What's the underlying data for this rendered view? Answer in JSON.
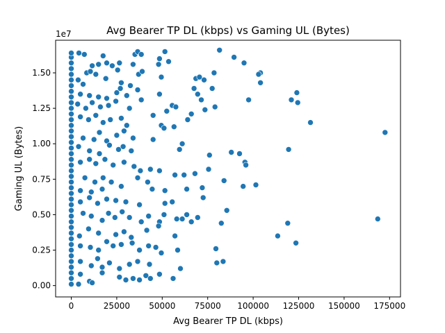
{
  "chart_data": {
    "type": "scatter",
    "title": "Avg Bearer TP DL (kbps) vs Gaming UL (Bytes)",
    "xlabel": "Avg Bearer TP DL (kbps)",
    "ylabel": "Gaming UL (Bytes)",
    "y_offset_label": "1e7",
    "xlim": [
      -8600,
      181000
    ],
    "ylim": [
      -800000,
      17300000
    ],
    "x_ticks": [
      0,
      25000,
      50000,
      75000,
      100000,
      125000,
      150000,
      175000
    ],
    "x_tick_labels": [
      "0",
      "25000",
      "50000",
      "75000",
      "100000",
      "125000",
      "150000",
      "175000"
    ],
    "y_ticks": [
      0,
      2500000,
      5000000,
      7500000,
      10000000,
      12500000,
      15000000
    ],
    "y_tick_labels": [
      "0.00",
      "0.25",
      "0.50",
      "0.75",
      "1.00",
      "1.25",
      "1.50"
    ],
    "grid": false,
    "point_color": "#1f77b4",
    "points": [
      {
        "x": 0,
        "y": 100000
      },
      {
        "x": 0,
        "y": 500000
      },
      {
        "x": 0,
        "y": 900000
      },
      {
        "x": 0,
        "y": 1300000
      },
      {
        "x": 0,
        "y": 1700000
      },
      {
        "x": 0,
        "y": 2100000
      },
      {
        "x": 0,
        "y": 2500000
      },
      {
        "x": 0,
        "y": 2900000
      },
      {
        "x": 0,
        "y": 3300000
      },
      {
        "x": 0,
        "y": 3700000
      },
      {
        "x": 0,
        "y": 4100000
      },
      {
        "x": 0,
        "y": 4500000
      },
      {
        "x": 0,
        "y": 4900000
      },
      {
        "x": 0,
        "y": 5300000
      },
      {
        "x": 0,
        "y": 5700000
      },
      {
        "x": 0,
        "y": 6100000
      },
      {
        "x": 0,
        "y": 6500000
      },
      {
        "x": 0,
        "y": 6900000
      },
      {
        "x": 0,
        "y": 7300000
      },
      {
        "x": 0,
        "y": 7700000
      },
      {
        "x": 0,
        "y": 8100000
      },
      {
        "x": 0,
        "y": 8500000
      },
      {
        "x": 0,
        "y": 8900000
      },
      {
        "x": 0,
        "y": 9300000
      },
      {
        "x": 0,
        "y": 9700000
      },
      {
        "x": 0,
        "y": 10100000
      },
      {
        "x": 0,
        "y": 10500000
      },
      {
        "x": 0,
        "y": 10900000
      },
      {
        "x": 0,
        "y": 11300000
      },
      {
        "x": 0,
        "y": 11700000
      },
      {
        "x": 0,
        "y": 12100000
      },
      {
        "x": 0,
        "y": 12500000
      },
      {
        "x": 0,
        "y": 12900000
      },
      {
        "x": 0,
        "y": 13300000
      },
      {
        "x": 0,
        "y": 13700000
      },
      {
        "x": 0,
        "y": 14100000
      },
      {
        "x": 0,
        "y": 14500000
      },
      {
        "x": 0,
        "y": 14900000
      },
      {
        "x": 0,
        "y": 15300000
      },
      {
        "x": 0,
        "y": 15700000
      },
      {
        "x": 0,
        "y": 16100000
      },
      {
        "x": 0,
        "y": 16400000
      },
      {
        "x": 4200,
        "y": 16400000
      },
      {
        "x": 7200,
        "y": 16300000
      },
      {
        "x": 17500,
        "y": 16200000
      },
      {
        "x": 35000,
        "y": 16300000
      },
      {
        "x": 36500,
        "y": 16500000
      },
      {
        "x": 38500,
        "y": 16300000
      },
      {
        "x": 51500,
        "y": 16500000
      },
      {
        "x": 81500,
        "y": 16600000
      },
      {
        "x": 11500,
        "y": 15500000
      },
      {
        "x": 15000,
        "y": 15600000
      },
      {
        "x": 19500,
        "y": 15700000
      },
      {
        "x": 22500,
        "y": 15500000
      },
      {
        "x": 26500,
        "y": 15700000
      },
      {
        "x": 34000,
        "y": 15600000
      },
      {
        "x": 48500,
        "y": 16000000
      },
      {
        "x": 48000,
        "y": 15600000
      },
      {
        "x": 53500,
        "y": 15800000
      },
      {
        "x": 89500,
        "y": 16100000
      },
      {
        "x": 95000,
        "y": 15700000
      },
      {
        "x": 8500,
        "y": 15000000
      },
      {
        "x": 10500,
        "y": 15100000
      },
      {
        "x": 13500,
        "y": 14900000
      },
      {
        "x": 25500,
        "y": 15200000
      },
      {
        "x": 37000,
        "y": 14900000
      },
      {
        "x": 39000,
        "y": 15100000
      },
      {
        "x": 78500,
        "y": 15000000
      },
      {
        "x": 104000,
        "y": 15000000
      },
      {
        "x": 103000,
        "y": 14900000
      },
      {
        "x": 3800,
        "y": 14500000
      },
      {
        "x": 6500,
        "y": 14200000
      },
      {
        "x": 19000,
        "y": 14600000
      },
      {
        "x": 27500,
        "y": 14300000
      },
      {
        "x": 32500,
        "y": 14100000
      },
      {
        "x": 49500,
        "y": 14700000
      },
      {
        "x": 68500,
        "y": 14600000
      },
      {
        "x": 70500,
        "y": 14700000
      },
      {
        "x": 73000,
        "y": 14500000
      },
      {
        "x": 104000,
        "y": 14300000
      },
      {
        "x": 5000,
        "y": 13500000
      },
      {
        "x": 10000,
        "y": 13400000
      },
      {
        "x": 15000,
        "y": 13300000
      },
      {
        "x": 19500,
        "y": 13200000
      },
      {
        "x": 25000,
        "y": 13600000
      },
      {
        "x": 27000,
        "y": 13900000
      },
      {
        "x": 30500,
        "y": 13400000
      },
      {
        "x": 36500,
        "y": 13800000
      },
      {
        "x": 48500,
        "y": 13500000
      },
      {
        "x": 67500,
        "y": 13900000
      },
      {
        "x": 69500,
        "y": 13500000
      },
      {
        "x": 71500,
        "y": 13100000
      },
      {
        "x": 77500,
        "y": 13900000
      },
      {
        "x": 97500,
        "y": 13100000
      },
      {
        "x": 121000,
        "y": 13100000
      },
      {
        "x": 124000,
        "y": 13600000
      },
      {
        "x": 124500,
        "y": 12900000
      },
      {
        "x": 3500,
        "y": 12800000
      },
      {
        "x": 8000,
        "y": 12500000
      },
      {
        "x": 11500,
        "y": 12900000
      },
      {
        "x": 16000,
        "y": 12600000
      },
      {
        "x": 20500,
        "y": 12700000
      },
      {
        "x": 24500,
        "y": 13000000
      },
      {
        "x": 32000,
        "y": 12500000
      },
      {
        "x": 38500,
        "y": 13100000
      },
      {
        "x": 52500,
        "y": 12300000
      },
      {
        "x": 55500,
        "y": 12700000
      },
      {
        "x": 57500,
        "y": 12600000
      },
      {
        "x": 73500,
        "y": 12400000
      },
      {
        "x": 79000,
        "y": 12600000
      },
      {
        "x": 5000,
        "y": 11900000
      },
      {
        "x": 9500,
        "y": 11700000
      },
      {
        "x": 13500,
        "y": 12000000
      },
      {
        "x": 17500,
        "y": 11500000
      },
      {
        "x": 21500,
        "y": 11700000
      },
      {
        "x": 27500,
        "y": 11800000
      },
      {
        "x": 30500,
        "y": 11300000
      },
      {
        "x": 45000,
        "y": 12000000
      },
      {
        "x": 49500,
        "y": 11300000
      },
      {
        "x": 56500,
        "y": 11200000
      },
      {
        "x": 64000,
        "y": 11700000
      },
      {
        "x": 66000,
        "y": 12100000
      },
      {
        "x": 131500,
        "y": 11500000
      },
      {
        "x": 6500,
        "y": 10400000
      },
      {
        "x": 12500,
        "y": 10300000
      },
      {
        "x": 15500,
        "y": 10800000
      },
      {
        "x": 19500,
        "y": 10200000
      },
      {
        "x": 25000,
        "y": 10600000
      },
      {
        "x": 29000,
        "y": 10900000
      },
      {
        "x": 34000,
        "y": 10400000
      },
      {
        "x": 45000,
        "y": 10300000
      },
      {
        "x": 51000,
        "y": 11100000
      },
      {
        "x": 61000,
        "y": 10000000
      },
      {
        "x": 59500,
        "y": 9600000
      },
      {
        "x": 172500,
        "y": 10800000
      },
      {
        "x": 4000,
        "y": 9800000
      },
      {
        "x": 10000,
        "y": 9500000
      },
      {
        "x": 15500,
        "y": 9300000
      },
      {
        "x": 21000,
        "y": 9900000
      },
      {
        "x": 26000,
        "y": 9600000
      },
      {
        "x": 28500,
        "y": 9800000
      },
      {
        "x": 33000,
        "y": 9500000
      },
      {
        "x": 76000,
        "y": 9200000
      },
      {
        "x": 88000,
        "y": 9400000
      },
      {
        "x": 92500,
        "y": 9300000
      },
      {
        "x": 119500,
        "y": 9600000
      },
      {
        "x": 5000,
        "y": 8700000
      },
      {
        "x": 10000,
        "y": 8900000
      },
      {
        "x": 13500,
        "y": 8600000
      },
      {
        "x": 18500,
        "y": 8900000
      },
      {
        "x": 23000,
        "y": 8500000
      },
      {
        "x": 29000,
        "y": 8700000
      },
      {
        "x": 34500,
        "y": 8400000
      },
      {
        "x": 38000,
        "y": 8100000
      },
      {
        "x": 43500,
        "y": 8200000
      },
      {
        "x": 48500,
        "y": 8100000
      },
      {
        "x": 95500,
        "y": 8700000
      },
      {
        "x": 96000,
        "y": 8500000
      },
      {
        "x": 7500,
        "y": 7600000
      },
      {
        "x": 13000,
        "y": 7300000
      },
      {
        "x": 17500,
        "y": 7600000
      },
      {
        "x": 22000,
        "y": 7300000
      },
      {
        "x": 36500,
        "y": 7600000
      },
      {
        "x": 42000,
        "y": 7300000
      },
      {
        "x": 57000,
        "y": 7800000
      },
      {
        "x": 62000,
        "y": 7800000
      },
      {
        "x": 68000,
        "y": 7900000
      },
      {
        "x": 75500,
        "y": 8200000
      },
      {
        "x": 84000,
        "y": 7400000
      },
      {
        "x": 101500,
        "y": 7100000
      },
      {
        "x": 5000,
        "y": 6700000
      },
      {
        "x": 11000,
        "y": 6600000
      },
      {
        "x": 17000,
        "y": 6800000
      },
      {
        "x": 27500,
        "y": 7000000
      },
      {
        "x": 44500,
        "y": 6800000
      },
      {
        "x": 51500,
        "y": 6700000
      },
      {
        "x": 63500,
        "y": 6800000
      },
      {
        "x": 72000,
        "y": 6900000
      },
      {
        "x": 72500,
        "y": 6200000
      },
      {
        "x": 94500,
        "y": 7000000
      },
      {
        "x": 5000,
        "y": 5900000
      },
      {
        "x": 10000,
        "y": 6200000
      },
      {
        "x": 14500,
        "y": 5800000
      },
      {
        "x": 19500,
        "y": 6100000
      },
      {
        "x": 24500,
        "y": 6000000
      },
      {
        "x": 30000,
        "y": 5900000
      },
      {
        "x": 37500,
        "y": 5700000
      },
      {
        "x": 51500,
        "y": 5800000
      },
      {
        "x": 55500,
        "y": 5900000
      },
      {
        "x": 85500,
        "y": 5300000
      },
      {
        "x": 6500,
        "y": 5100000
      },
      {
        "x": 11000,
        "y": 4900000
      },
      {
        "x": 17000,
        "y": 4600000
      },
      {
        "x": 20500,
        "y": 5100000
      },
      {
        "x": 24000,
        "y": 4800000
      },
      {
        "x": 28000,
        "y": 5200000
      },
      {
        "x": 32000,
        "y": 4800000
      },
      {
        "x": 38500,
        "y": 4500000
      },
      {
        "x": 42500,
        "y": 4900000
      },
      {
        "x": 48500,
        "y": 4500000
      },
      {
        "x": 51000,
        "y": 5000000
      },
      {
        "x": 58000,
        "y": 4700000
      },
      {
        "x": 61000,
        "y": 4700000
      },
      {
        "x": 63500,
        "y": 5000000
      },
      {
        "x": 66000,
        "y": 4500000
      },
      {
        "x": 69500,
        "y": 4800000
      },
      {
        "x": 82500,
        "y": 4400000
      },
      {
        "x": 119000,
        "y": 4400000
      },
      {
        "x": 168500,
        "y": 4700000
      },
      {
        "x": 4500,
        "y": 3500000
      },
      {
        "x": 9500,
        "y": 4000000
      },
      {
        "x": 15000,
        "y": 3700000
      },
      {
        "x": 24500,
        "y": 3600000
      },
      {
        "x": 29000,
        "y": 3800000
      },
      {
        "x": 33000,
        "y": 3400000
      },
      {
        "x": 41500,
        "y": 3900000
      },
      {
        "x": 48000,
        "y": 4200000
      },
      {
        "x": 57000,
        "y": 3500000
      },
      {
        "x": 113500,
        "y": 3500000
      },
      {
        "x": 5000,
        "y": 2800000
      },
      {
        "x": 10500,
        "y": 2700000
      },
      {
        "x": 15000,
        "y": 2500000
      },
      {
        "x": 19500,
        "y": 3100000
      },
      {
        "x": 23000,
        "y": 2800000
      },
      {
        "x": 27500,
        "y": 2900000
      },
      {
        "x": 33500,
        "y": 3000000
      },
      {
        "x": 37500,
        "y": 2500000
      },
      {
        "x": 42500,
        "y": 2800000
      },
      {
        "x": 46500,
        "y": 2700000
      },
      {
        "x": 58500,
        "y": 2500000
      },
      {
        "x": 79500,
        "y": 2600000
      },
      {
        "x": 123500,
        "y": 3000000
      },
      {
        "x": 5000,
        "y": 1700000
      },
      {
        "x": 11000,
        "y": 1400000
      },
      {
        "x": 14500,
        "y": 1900000
      },
      {
        "x": 17000,
        "y": 1300000
      },
      {
        "x": 21000,
        "y": 1600000
      },
      {
        "x": 26500,
        "y": 1200000
      },
      {
        "x": 32000,
        "y": 1500000
      },
      {
        "x": 36500,
        "y": 1700000
      },
      {
        "x": 43000,
        "y": 1500000
      },
      {
        "x": 49500,
        "y": 2300000
      },
      {
        "x": 60000,
        "y": 1200000
      },
      {
        "x": 80000,
        "y": 1600000
      },
      {
        "x": 83500,
        "y": 1700000
      },
      {
        "x": 5000,
        "y": 800000
      },
      {
        "x": 10000,
        "y": 300000
      },
      {
        "x": 11500,
        "y": 200000
      },
      {
        "x": 17000,
        "y": 900000
      },
      {
        "x": 26500,
        "y": 600000
      },
      {
        "x": 30000,
        "y": 400000
      },
      {
        "x": 34000,
        "y": 500000
      },
      {
        "x": 37500,
        "y": 400000
      },
      {
        "x": 41000,
        "y": 700000
      },
      {
        "x": 43500,
        "y": 500000
      },
      {
        "x": 48500,
        "y": 800000
      },
      {
        "x": 56000,
        "y": 500000
      },
      {
        "x": 4000,
        "y": 100000
      }
    ]
  }
}
